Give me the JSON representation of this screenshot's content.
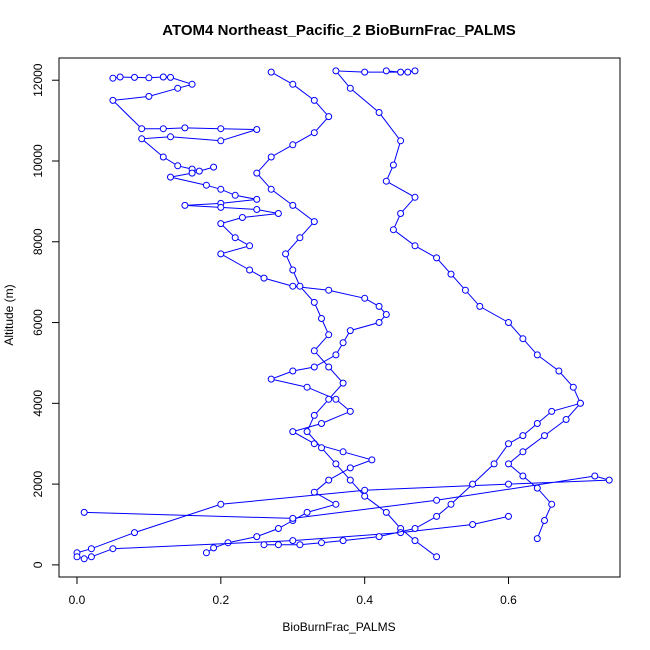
{
  "chart_data": {
    "type": "line",
    "title": "ATOM4 Northeast_Pacific_2 BioBurnFrac_PALMS",
    "xlabel": "BioBurnFrac_PALMS",
    "ylabel": "Altitude (m)",
    "xlim": [
      -0.025,
      0.755
    ],
    "ylim": [
      -300,
      12550
    ],
    "xticks": [
      0.0,
      0.2,
      0.4,
      0.6
    ],
    "xtick_labels": [
      "0.0",
      "0.2",
      "0.4",
      "0.6"
    ],
    "yticks": [
      0,
      2000,
      4000,
      6000,
      8000,
      10000,
      12000
    ],
    "ytick_labels": [
      "0",
      "2000",
      "4000",
      "6000",
      "8000",
      "10000",
      "12000"
    ],
    "grid": false,
    "marker": "open-circle",
    "color": "#0000ff",
    "series": [
      {
        "points": [
          [
            0.05,
            12050
          ],
          [
            0.06,
            12080
          ],
          [
            0.08,
            12070
          ],
          [
            0.1,
            12060
          ],
          [
            0.12,
            12080
          ],
          [
            0.13,
            12070
          ],
          [
            0.16,
            11900
          ],
          [
            0.14,
            11800
          ],
          [
            0.1,
            11600
          ],
          [
            0.05,
            11500
          ],
          [
            0.09,
            10800
          ],
          [
            0.12,
            10800
          ],
          [
            0.15,
            10820
          ],
          [
            0.2,
            10800
          ],
          [
            0.25,
            10780
          ],
          [
            0.2,
            10500
          ],
          [
            0.13,
            10600
          ],
          [
            0.09,
            10550
          ],
          [
            0.12,
            10100
          ],
          [
            0.14,
            9880
          ],
          [
            0.16,
            9800
          ],
          [
            0.17,
            9750
          ],
          [
            0.19,
            9850
          ],
          [
            0.16,
            9700
          ],
          [
            0.13,
            9600
          ],
          [
            0.18,
            9400
          ],
          [
            0.2,
            9300
          ],
          [
            0.22,
            9150
          ],
          [
            0.25,
            9050
          ],
          [
            0.2,
            8950
          ],
          [
            0.15,
            8900
          ],
          [
            0.2,
            8850
          ],
          [
            0.25,
            8800
          ],
          [
            0.28,
            8700
          ],
          [
            0.23,
            8600
          ],
          [
            0.2,
            8450
          ],
          [
            0.22,
            8100
          ],
          [
            0.24,
            7900
          ],
          [
            0.2,
            7700
          ],
          [
            0.24,
            7300
          ],
          [
            0.26,
            7100
          ],
          [
            0.3,
            6900
          ],
          [
            0.35,
            6800
          ],
          [
            0.4,
            6600
          ],
          [
            0.42,
            6400
          ],
          [
            0.43,
            6200
          ],
          [
            0.42,
            6000
          ],
          [
            0.38,
            5800
          ],
          [
            0.37,
            5500
          ],
          [
            0.36,
            5200
          ],
          [
            0.33,
            4900
          ],
          [
            0.3,
            4800
          ],
          [
            0.27,
            4600
          ],
          [
            0.32,
            4400
          ],
          [
            0.36,
            4100
          ],
          [
            0.38,
            3800
          ],
          [
            0.34,
            3500
          ],
          [
            0.3,
            3300
          ],
          [
            0.33,
            3000
          ],
          [
            0.37,
            2800
          ],
          [
            0.41,
            2600
          ],
          [
            0.38,
            2400
          ],
          [
            0.35,
            2100
          ],
          [
            0.33,
            1800
          ],
          [
            0.36,
            1500
          ],
          [
            0.32,
            1300
          ],
          [
            0.3,
            1100
          ],
          [
            0.28,
            900
          ],
          [
            0.25,
            700
          ],
          [
            0.21,
            550
          ],
          [
            0.19,
            420
          ],
          [
            0.18,
            300
          ]
        ]
      },
      {
        "points": [
          [
            0.27,
            12200
          ],
          [
            0.3,
            11900
          ],
          [
            0.33,
            11500
          ],
          [
            0.35,
            11100
          ],
          [
            0.33,
            10700
          ],
          [
            0.3,
            10400
          ],
          [
            0.27,
            10100
          ],
          [
            0.25,
            9700
          ],
          [
            0.27,
            9300
          ],
          [
            0.3,
            8900
          ],
          [
            0.33,
            8500
          ],
          [
            0.31,
            8100
          ],
          [
            0.29,
            7700
          ],
          [
            0.3,
            7300
          ],
          [
            0.31,
            6900
          ],
          [
            0.33,
            6500
          ],
          [
            0.34,
            6100
          ],
          [
            0.35,
            5700
          ],
          [
            0.33,
            5300
          ],
          [
            0.35,
            4900
          ],
          [
            0.37,
            4500
          ],
          [
            0.35,
            4100
          ],
          [
            0.33,
            3700
          ],
          [
            0.32,
            3300
          ],
          [
            0.34,
            2900
          ],
          [
            0.36,
            2500
          ],
          [
            0.38,
            2100
          ],
          [
            0.4,
            1700
          ],
          [
            0.43,
            1300
          ],
          [
            0.45,
            900
          ],
          [
            0.47,
            600
          ],
          [
            0.5,
            200
          ]
        ]
      },
      {
        "points": [
          [
            0.43,
            12230
          ],
          [
            0.45,
            12200
          ],
          [
            0.47,
            12230
          ],
          [
            0.46,
            12200
          ],
          [
            0.4,
            12200
          ],
          [
            0.36,
            12230
          ],
          [
            0.38,
            11800
          ],
          [
            0.42,
            11200
          ],
          [
            0.45,
            10500
          ],
          [
            0.44,
            9900
          ],
          [
            0.43,
            9500
          ],
          [
            0.47,
            9100
          ],
          [
            0.45,
            8700
          ],
          [
            0.44,
            8300
          ],
          [
            0.47,
            7900
          ],
          [
            0.5,
            7600
          ],
          [
            0.52,
            7200
          ],
          [
            0.54,
            6800
          ],
          [
            0.56,
            6400
          ],
          [
            0.6,
            6000
          ],
          [
            0.62,
            5600
          ],
          [
            0.64,
            5200
          ],
          [
            0.67,
            4800
          ],
          [
            0.69,
            4400
          ],
          [
            0.7,
            4000
          ],
          [
            0.68,
            3600
          ],
          [
            0.65,
            3200
          ],
          [
            0.62,
            2800
          ],
          [
            0.6,
            2500
          ],
          [
            0.62,
            2200
          ],
          [
            0.64,
            1900
          ],
          [
            0.66,
            1500
          ],
          [
            0.65,
            1100
          ],
          [
            0.64,
            650
          ]
        ]
      },
      {
        "points": [
          [
            0.01,
            1300
          ],
          [
            0.3,
            1150
          ],
          [
            0.5,
            1600
          ],
          [
            0.72,
            2200
          ],
          [
            0.74,
            2100
          ],
          [
            0.6,
            2000
          ],
          [
            0.4,
            1850
          ],
          [
            0.2,
            1500
          ],
          [
            0.08,
            800
          ],
          [
            0.02,
            400
          ],
          [
            0.0,
            300
          ],
          [
            0.0,
            200
          ],
          [
            0.01,
            150
          ],
          [
            0.02,
            200
          ],
          [
            0.05,
            400
          ],
          [
            0.3,
            600
          ],
          [
            0.45,
            800
          ],
          [
            0.55,
            1000
          ],
          [
            0.6,
            1200
          ]
        ]
      },
      {
        "points": [
          [
            0.26,
            500
          ],
          [
            0.28,
            500
          ],
          [
            0.31,
            500
          ],
          [
            0.34,
            550
          ],
          [
            0.37,
            600
          ],
          [
            0.42,
            700
          ],
          [
            0.47,
            900
          ],
          [
            0.5,
            1200
          ],
          [
            0.52,
            1500
          ],
          [
            0.55,
            2000
          ],
          [
            0.58,
            2500
          ],
          [
            0.6,
            3000
          ],
          [
            0.62,
            3200
          ],
          [
            0.64,
            3500
          ],
          [
            0.66,
            3800
          ],
          [
            0.7,
            4000
          ]
        ]
      }
    ]
  }
}
